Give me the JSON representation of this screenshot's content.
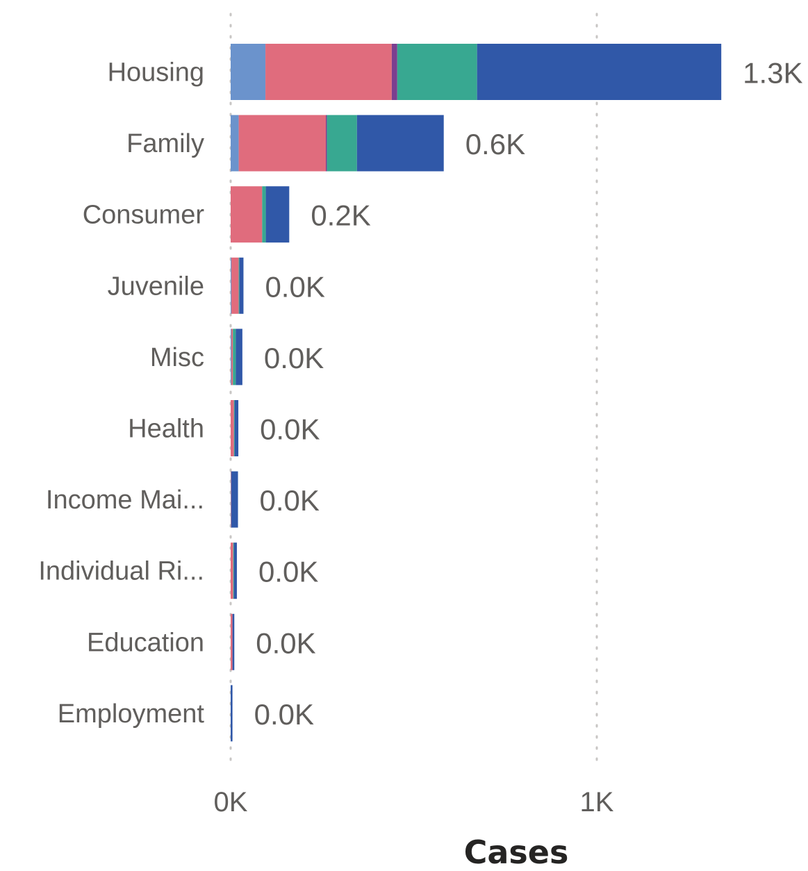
{
  "chart_data": {
    "type": "bar",
    "orientation": "horizontal",
    "stacked": true,
    "categories": [
      "Housing",
      "Family",
      "Consumer",
      "Juvenile",
      "Misc",
      "Health",
      "Income Mai...",
      "Individual Ri...",
      "Education",
      "Employment"
    ],
    "series": [
      {
        "color": "#6b93cc",
        "values": [
          95,
          22,
          0,
          2,
          2,
          0,
          1,
          0,
          0,
          0
        ]
      },
      {
        "color": "#e06c7d",
        "values": [
          345,
          238,
          86,
          20,
          4,
          9,
          1,
          7,
          5,
          0
        ]
      },
      {
        "color": "#7b3f8f",
        "values": [
          15,
          3,
          0,
          0,
          0,
          0,
          0,
          0,
          0,
          0
        ]
      },
      {
        "color": "#38a891",
        "values": [
          218,
          82,
          10,
          2,
          8,
          2,
          0,
          2,
          0,
          0
        ]
      },
      {
        "color": "#3058a8",
        "values": [
          667,
          237,
          64,
          11,
          18,
          10,
          18,
          8,
          5,
          5
        ]
      }
    ],
    "data_labels": [
      "1.3K",
      "0.6K",
      "0.2K",
      "0.0K",
      "0.0K",
      "0.0K",
      "0.0K",
      "0.0K",
      "0.0K",
      "0.0K"
    ],
    "xlabel": "Cases",
    "x_ticks": [
      {
        "value": 0,
        "label": "0K"
      },
      {
        "value": 1000,
        "label": "1K"
      }
    ],
    "xlim": [
      0,
      1500
    ],
    "grid": "vertical dotted"
  }
}
